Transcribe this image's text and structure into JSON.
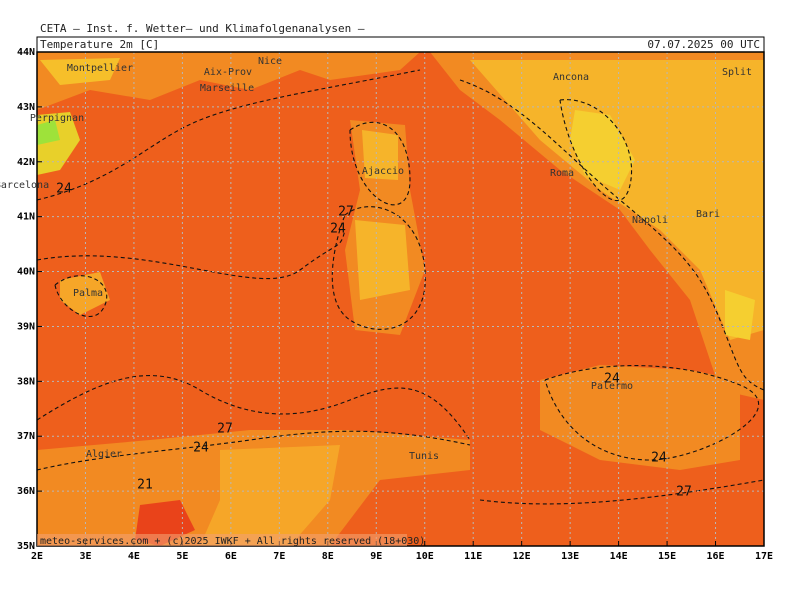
{
  "header": {
    "source": "CETA – Inst. f. Wetter– und Klimafolgenanalysen –",
    "variable": "Temperature 2m [C]",
    "valid_time": "07.07.2025 00 UTC"
  },
  "map": {
    "lon_labels": [
      "2E",
      "3E",
      "4E",
      "5E",
      "6E",
      "7E",
      "8E",
      "9E",
      "10E",
      "11E",
      "12E",
      "13E",
      "14E",
      "15E",
      "16E",
      "17E"
    ],
    "lat_labels": [
      "44N",
      "43N",
      "42N",
      "41N",
      "40N",
      "39N",
      "38N",
      "37N",
      "36N",
      "35N"
    ],
    "cities": [
      "Montpellier",
      "Aix-Prov",
      "Nice",
      "Marseille",
      "Perpignan",
      "Barcelona",
      "Ajaccio",
      "Ancona",
      "Split",
      "Roma",
      "Napoli",
      "Bari",
      "Palma",
      "Palermo",
      "Algier",
      "Tunis"
    ],
    "contour_labels": [
      24,
      27,
      24,
      24,
      27,
      24,
      21,
      24,
      27
    ]
  },
  "footer": "meteo-services.com + (c)2025 IWKF + All rights reserved (18+030)"
}
